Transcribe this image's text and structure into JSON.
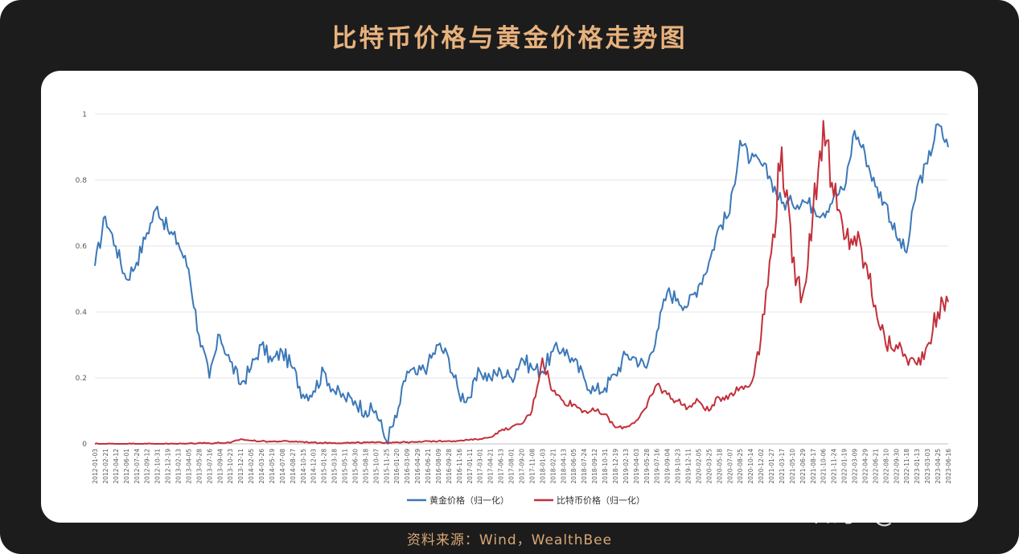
{
  "page": {
    "title": "比特币价格与黄金价格走势图",
    "source": "资料来源：Wind，WealthBee",
    "watermark": "知乎 @R3PO"
  },
  "colors": {
    "background": "#1c1c1c",
    "title": "#e8b27d",
    "source": "#d9a775",
    "gold_series": "#3b78b8",
    "bitcoin_series": "#c2303b",
    "grid": "#e6e6e6"
  },
  "chart_data": {
    "type": "line",
    "title": "",
    "xlabel": "",
    "ylabel": "",
    "ylim": [
      0,
      1
    ],
    "yticks": [
      "0",
      "0.2",
      "0.4",
      "0.6",
      "0.8",
      "1"
    ],
    "grid": true,
    "legend_position": "bottom",
    "x_dates": [
      "2012-01-03",
      "2012-02-21",
      "2012-04-12",
      "2012-06-01",
      "2012-07-24",
      "2012-09-12",
      "2012-10-31",
      "2012-12-19",
      "2013-02-13",
      "2013-04-05",
      "2013-05-28",
      "2013-07-16",
      "2013-09-04",
      "2013-10-23",
      "2013-12-11",
      "2014-02-05",
      "2014-03-26",
      "2014-05-19",
      "2014-07-08",
      "2014-08-27",
      "2014-10-15",
      "2014-12-03",
      "2015-01-28",
      "2015-03-18",
      "2015-05-11",
      "2015-06-30",
      "2015-08-18",
      "2015-10-07",
      "2015-11-25",
      "2016-01-20",
      "2016-03-09",
      "2016-04-29",
      "2016-06-21",
      "2016-08-09",
      "2016-09-28",
      "2016-11-16",
      "2017-01-11",
      "2017-03-01",
      "2017-04-21",
      "2017-06-13",
      "2017-08-01",
      "2017-09-20",
      "2017-11-08",
      "2018-01-03",
      "2018-02-21",
      "2018-04-13",
      "2018-06-05",
      "2018-07-24",
      "2018-09-12",
      "2018-10-31",
      "2018-12-19",
      "2019-02-13",
      "2019-04-03",
      "2019-05-28",
      "2019-07-16",
      "2019-09-04",
      "2019-10-23",
      "2019-12-11",
      "2020-02-05",
      "2020-03-25",
      "2020-05-18",
      "2020-07-07",
      "2020-08-25",
      "2020-10-14",
      "2020-12-02",
      "2021-01-27",
      "2021-03-17",
      "2021-05-10",
      "2021-06-29",
      "2021-08-17",
      "2021-10-06",
      "2021-11-24",
      "2022-01-19",
      "2022-03-09",
      "2022-04-29",
      "2022-06-21",
      "2022-08-10",
      "2022-09-30",
      "2022-11-18",
      "2023-01-13",
      "2023-03-03",
      "2023-04-25",
      "2023-06-16"
    ],
    "series": [
      {
        "name": "黄金价格（归一化）",
        "color": "#3b78b8",
        "values": [
          0.54,
          0.69,
          0.6,
          0.5,
          0.55,
          0.64,
          0.72,
          0.65,
          0.61,
          0.53,
          0.33,
          0.2,
          0.33,
          0.25,
          0.18,
          0.23,
          0.3,
          0.25,
          0.28,
          0.23,
          0.15,
          0.16,
          0.22,
          0.16,
          0.14,
          0.13,
          0.1,
          0.1,
          0.01,
          0.08,
          0.22,
          0.21,
          0.24,
          0.3,
          0.26,
          0.15,
          0.14,
          0.22,
          0.2,
          0.22,
          0.2,
          0.26,
          0.23,
          0.22,
          0.28,
          0.29,
          0.25,
          0.2,
          0.16,
          0.17,
          0.21,
          0.27,
          0.26,
          0.23,
          0.34,
          0.46,
          0.44,
          0.42,
          0.48,
          0.55,
          0.66,
          0.7,
          0.92,
          0.86,
          0.85,
          0.8,
          0.73,
          0.73,
          0.74,
          0.72,
          0.7,
          0.75,
          0.77,
          0.95,
          0.88,
          0.78,
          0.73,
          0.63,
          0.58,
          0.78,
          0.85,
          0.97,
          0.9
        ]
      },
      {
        "name": "比特币价格（归一化）",
        "color": "#c2303b",
        "values": [
          0,
          0,
          0,
          0,
          0,
          0,
          0,
          0,
          0,
          0.001,
          0.003,
          0.002,
          0.003,
          0.003,
          0.014,
          0.01,
          0.008,
          0.007,
          0.008,
          0.007,
          0.006,
          0.004,
          0.003,
          0.003,
          0.003,
          0.003,
          0.004,
          0.004,
          0.004,
          0.005,
          0.005,
          0.005,
          0.008,
          0.008,
          0.009,
          0.009,
          0.012,
          0.015,
          0.02,
          0.04,
          0.05,
          0.06,
          0.1,
          0.26,
          0.16,
          0.13,
          0.12,
          0.1,
          0.1,
          0.09,
          0.05,
          0.05,
          0.07,
          0.11,
          0.18,
          0.15,
          0.13,
          0.11,
          0.13,
          0.1,
          0.14,
          0.15,
          0.17,
          0.18,
          0.32,
          0.58,
          0.9,
          0.55,
          0.45,
          0.7,
          0.98,
          0.75,
          0.62,
          0.63,
          0.55,
          0.42,
          0.3,
          0.3,
          0.26,
          0.24,
          0.3,
          0.4,
          0.43
        ]
      }
    ]
  }
}
